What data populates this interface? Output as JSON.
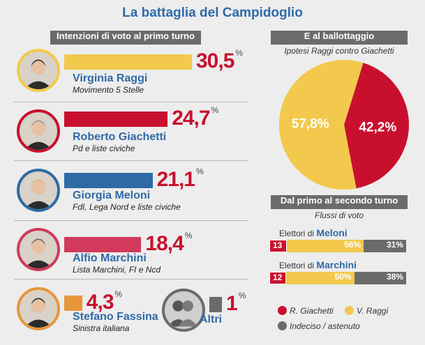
{
  "title": "La battaglia del Campidoglio",
  "colors": {
    "red": "#c8102e",
    "yellow": "#f2c94c",
    "blue": "#2e6aa6",
    "gray": "#6b6b6b",
    "pink": "#d13a5a",
    "orange": "#e8963a"
  },
  "chart_data": [
    {
      "type": "bar",
      "title": "Intenzioni di voto al primo turno",
      "categories": [
        "Virginia Raggi",
        "Roberto Giachetti",
        "Giorgia Meloni",
        "Alfio Marchini",
        "Stefano Fassina",
        "Altri"
      ],
      "values": [
        30.5,
        24.7,
        21.1,
        18.4,
        4.3,
        1
      ],
      "value_labels": [
        "30,5",
        "24,7",
        "21,1",
        "18,4",
        "4,3",
        "1"
      ],
      "unit": "%",
      "subtitles": [
        "Movimento 5 Stelle",
        "Pd e liste civiche",
        "FdI, Lega Nord e liste civiche",
        "Lista Marchini, FI e Ncd",
        "Sinistra italiana",
        ""
      ],
      "colors": [
        "#f2c94c",
        "#c8102e",
        "#2e6aa6",
        "#d13a5a",
        "#e8963a",
        "#6b6b6b"
      ]
    },
    {
      "type": "pie",
      "title": "E al ballottaggio",
      "subtitle": "Ipotesi Raggi contro Giachetti",
      "slices": [
        {
          "label": "57,8",
          "value": 57.8,
          "color": "#f2c94c"
        },
        {
          "label": "42,2",
          "value": 42.2,
          "color": "#c8102e"
        }
      ],
      "unit": "%"
    },
    {
      "type": "bar",
      "title": "Dal primo al secondo turno",
      "subtitle": "Flussi di voto",
      "stacked": true,
      "categories": [
        "Meloni",
        "Marchini"
      ],
      "category_prefix": "Elettori di",
      "series": [
        {
          "name": "R. Giachetti",
          "values": [
            13,
            12
          ],
          "labels": [
            "13",
            "12"
          ],
          "color": "#c8102e"
        },
        {
          "name": "V. Raggi",
          "values": [
            56,
            50
          ],
          "labels": [
            "56%",
            "50%"
          ],
          "color": "#f2c94c"
        },
        {
          "name": "Indeciso / astenuto",
          "values": [
            31,
            38
          ],
          "labels": [
            "31%",
            "38%"
          ],
          "color": "#6b6b6b"
        }
      ]
    }
  ]
}
